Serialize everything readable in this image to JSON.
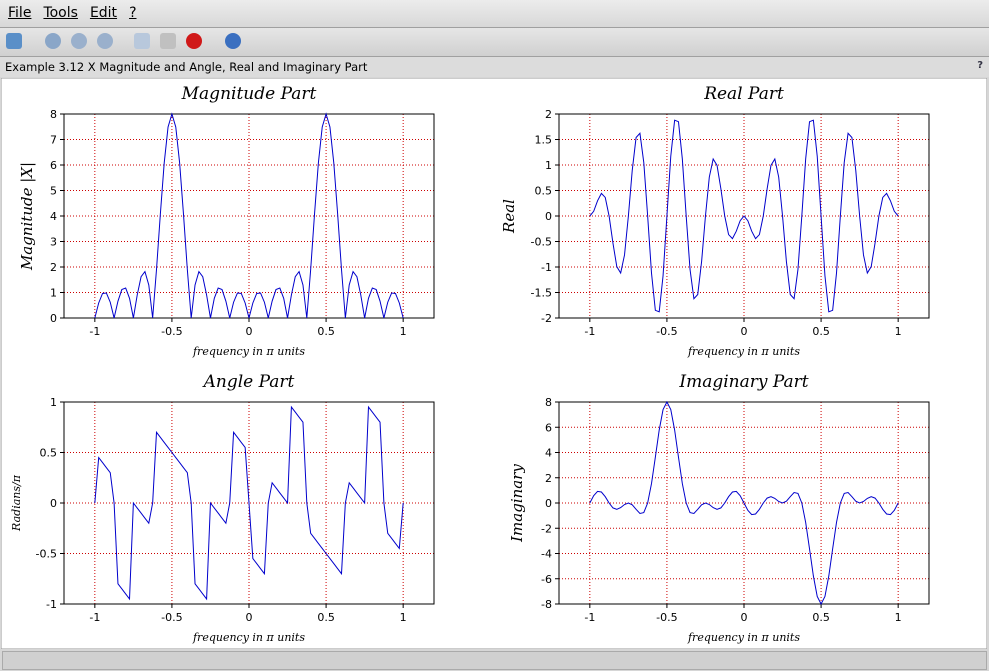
{
  "menu": [
    "File",
    "Tools",
    "Edit",
    "?"
  ],
  "window_title": "Example 3.12 X Magnitude and Angle, Real and Imaginary Part",
  "help_mark": "?",
  "chart_data": [
    {
      "type": "line",
      "title": "Magnitude Part",
      "x_label": "frequency in π units",
      "y_label": "Magnitude |X|",
      "xlim": [
        -1.2,
        1.2
      ],
      "xticks": [
        -1,
        -0.5,
        0,
        0.5,
        1
      ],
      "ylim": [
        0,
        8
      ],
      "yticks": [
        0,
        1,
        2,
        3,
        4,
        5,
        6,
        7,
        8
      ],
      "grid": true,
      "grid_color": "#cc0000",
      "x": [
        -1,
        -0.975,
        -0.95,
        -0.925,
        -0.9,
        -0.875,
        -0.85,
        -0.825,
        -0.8,
        -0.775,
        -0.75,
        -0.725,
        -0.7,
        -0.675,
        -0.65,
        -0.625,
        -0.6,
        -0.575,
        -0.55,
        -0.525,
        -0.5,
        -0.475,
        -0.45,
        -0.425,
        -0.4,
        -0.375,
        -0.35,
        -0.325,
        -0.3,
        -0.275,
        -0.25,
        -0.225,
        -0.2,
        -0.175,
        -0.15,
        -0.125,
        -0.1,
        -0.075,
        -0.05,
        -0.025,
        0,
        0.025,
        0.05,
        0.075,
        0.1,
        0.125,
        0.15,
        0.175,
        0.2,
        0.225,
        0.25,
        0.275,
        0.3,
        0.325,
        0.35,
        0.375,
        0.4,
        0.425,
        0.45,
        0.475,
        0.5,
        0.525,
        0.55,
        0.575,
        0.6,
        0.625,
        0.65,
        0.675,
        0.7,
        0.725,
        0.75,
        0.775,
        0.8,
        0.825,
        0.85,
        0.875,
        0.9,
        0.925,
        0.95,
        0.975,
        1
      ],
      "series": [
        {
          "color": "#0000cc",
          "values": [
            0,
            0.5896,
            0.9629,
            0.9781,
            0.618,
            0,
            0.6597,
            1.1155,
            1.1756,
            0.773,
            0,
            0.9051,
            1.6181,
            1.8203,
            1.2947,
            0,
            1.9021,
            4.0741,
            6.08,
            7.4917,
            8,
            7.4917,
            6.08,
            4.0741,
            1.9021,
            0,
            1.2947,
            1.8203,
            1.6181,
            0.9051,
            0,
            0.773,
            1.1756,
            1.1155,
            0.6597,
            0,
            0.618,
            0.9781,
            0.9629,
            0.5896,
            0,
            0.5896,
            0.9629,
            0.9781,
            0.618,
            0,
            0.6597,
            1.1155,
            1.1756,
            0.773,
            0,
            0.9051,
            1.6181,
            1.8203,
            1.2947,
            0,
            1.9021,
            4.0741,
            6.08,
            7.4917,
            8,
            7.4917,
            6.08,
            4.0741,
            1.9021,
            0,
            1.2947,
            1.8203,
            1.6181,
            0.9051,
            0,
            0.773,
            1.1756,
            1.1155,
            0.6597,
            0,
            0.618,
            0.9781,
            0.9629,
            0.5896,
            0
          ]
        }
      ]
    },
    {
      "type": "line",
      "title": "Real Part",
      "x_label": "frequency in π units",
      "y_label": "Real",
      "xlim": [
        -1.2,
        1.2
      ],
      "xticks": [
        -1,
        -0.5,
        0,
        0.5,
        1
      ],
      "ylim": [
        -2,
        2
      ],
      "yticks": [
        -2,
        -1.5,
        -1,
        -0.5,
        0,
        0.5,
        1,
        1.5,
        2
      ],
      "grid": true,
      "grid_color": "#cc0000",
      "x": [
        -1,
        -0.975,
        -0.95,
        -0.925,
        -0.9,
        -0.875,
        -0.85,
        -0.825,
        -0.8,
        -0.775,
        -0.75,
        -0.725,
        -0.7,
        -0.675,
        -0.65,
        -0.625,
        -0.6,
        -0.575,
        -0.55,
        -0.525,
        -0.5,
        -0.475,
        -0.45,
        -0.425,
        -0.4,
        -0.375,
        -0.35,
        -0.325,
        -0.3,
        -0.275,
        -0.25,
        -0.225,
        -0.2,
        -0.175,
        -0.15,
        -0.125,
        -0.1,
        -0.075,
        -0.05,
        -0.025,
        0,
        0.025,
        0.05,
        0.075,
        0.1,
        0.125,
        0.15,
        0.175,
        0.2,
        0.225,
        0.25,
        0.275,
        0.3,
        0.325,
        0.35,
        0.375,
        0.4,
        0.425,
        0.45,
        0.475,
        0.5,
        0.525,
        0.55,
        0.575,
        0.6,
        0.625,
        0.65,
        0.675,
        0.7,
        0.725,
        0.75,
        0.775,
        0.8,
        0.825,
        0.85,
        0.875,
        0.9,
        0.925,
        0.95,
        0.975,
        1
      ],
      "series": [
        {
          "color": "#0000cc",
          "values": [
            0,
            0.0922,
            0.2975,
            0.4441,
            0.3633,
            0,
            -0.5337,
            -0.9939,
            -1.1181,
            -0.7635,
            0,
            0.894,
            1.5389,
            1.6219,
            1.0474,
            0,
            -1.1181,
            -1.8496,
            -1.8787,
            -1.1717,
            0,
            1.1717,
            1.8787,
            1.8496,
            1.1181,
            0,
            -1.0474,
            -1.6219,
            -1.5389,
            -0.894,
            0,
            0.7635,
            1.1181,
            0.9939,
            0.5337,
            0,
            -0.3633,
            -0.4441,
            -0.2975,
            -0.0922,
            0,
            -0.0922,
            -0.2975,
            -0.4441,
            -0.3633,
            0,
            0.5337,
            0.9939,
            1.1181,
            0.7635,
            0,
            -0.894,
            -1.5389,
            -1.6219,
            -1.0474,
            0,
            1.1181,
            1.8496,
            1.8787,
            1.1717,
            0,
            -1.1717,
            -1.8787,
            -1.8496,
            -1.1181,
            0,
            1.0474,
            1.6219,
            1.5389,
            0.894,
            0,
            -0.7635,
            -1.1181,
            -0.9939,
            -0.5337,
            0,
            0.3633,
            0.4441,
            0.2975,
            0.0922,
            0
          ]
        }
      ]
    },
    {
      "type": "line",
      "title": "Angle Part",
      "x_label": "frequency in π units",
      "y_label": "Radians/π",
      "xlim": [
        -1.2,
        1.2
      ],
      "xticks": [
        -1,
        -0.5,
        0,
        0.5,
        1
      ],
      "ylim": [
        -1,
        1
      ],
      "yticks": [
        -1,
        -0.5,
        0,
        0.5,
        1
      ],
      "grid": true,
      "grid_color": "#cc0000",
      "x": [
        -1,
        -0.975,
        -0.95,
        -0.925,
        -0.9,
        -0.875,
        -0.85,
        -0.825,
        -0.8,
        -0.775,
        -0.75,
        -0.725,
        -0.7,
        -0.675,
        -0.65,
        -0.625,
        -0.6,
        -0.575,
        -0.55,
        -0.525,
        -0.5,
        -0.475,
        -0.45,
        -0.425,
        -0.4,
        -0.375,
        -0.35,
        -0.325,
        -0.3,
        -0.275,
        -0.25,
        -0.225,
        -0.2,
        -0.175,
        -0.15,
        -0.125,
        -0.1,
        -0.075,
        -0.05,
        -0.025,
        0,
        0.025,
        0.05,
        0.075,
        0.1,
        0.125,
        0.15,
        0.175,
        0.2,
        0.225,
        0.25,
        0.275,
        0.3,
        0.325,
        0.35,
        0.375,
        0.4,
        0.425,
        0.45,
        0.475,
        0.5,
        0.525,
        0.55,
        0.575,
        0.6,
        0.625,
        0.65,
        0.675,
        0.7,
        0.725,
        0.75,
        0.775,
        0.8,
        0.825,
        0.85,
        0.875,
        0.9,
        0.925,
        0.95,
        0.975,
        1
      ],
      "series": [
        {
          "color": "#0000cc",
          "values": [
            0,
            0.45,
            0.4,
            0.35,
            0.3,
            0,
            -0.8,
            -0.85,
            -0.9,
            -0.95,
            0,
            -0.05,
            -0.1,
            -0.15,
            -0.2,
            0,
            0.7,
            0.65,
            0.6,
            0.55,
            0.5,
            0.45,
            0.4,
            0.35,
            0.3,
            0,
            -0.8,
            -0.85,
            -0.9,
            -0.95,
            0,
            -0.05,
            -0.1,
            -0.15,
            -0.2,
            0,
            0.7,
            0.65,
            0.6,
            0.55,
            0,
            -0.55,
            -0.6,
            -0.65,
            -0.7,
            0,
            0.2,
            0.15,
            0.1,
            0.05,
            0,
            0.95,
            0.9,
            0.85,
            0.8,
            0,
            -0.3,
            -0.35,
            -0.4,
            -0.45,
            -0.5,
            -0.55,
            -0.6,
            -0.65,
            -0.7,
            0,
            0.2,
            0.15,
            0.1,
            0.05,
            0,
            0.95,
            0.9,
            0.85,
            0.8,
            0,
            -0.3,
            -0.35,
            -0.4,
            -0.45,
            0
          ]
        }
      ]
    },
    {
      "type": "line",
      "title": "Imaginary Part",
      "x_label": "frequency in π units",
      "y_label": "Imaginary",
      "xlim": [
        -1.2,
        1.2
      ],
      "xticks": [
        -1,
        -0.5,
        0,
        0.5,
        1
      ],
      "ylim": [
        -8,
        8
      ],
      "yticks": [
        -8,
        -6,
        -4,
        -2,
        0,
        2,
        4,
        6,
        8
      ],
      "grid": true,
      "grid_color": "#cc0000",
      "x": [
        -1,
        -0.975,
        -0.95,
        -0.925,
        -0.9,
        -0.875,
        -0.85,
        -0.825,
        -0.8,
        -0.775,
        -0.75,
        -0.725,
        -0.7,
        -0.675,
        -0.65,
        -0.625,
        -0.6,
        -0.575,
        -0.55,
        -0.525,
        -0.5,
        -0.475,
        -0.45,
        -0.425,
        -0.4,
        -0.375,
        -0.35,
        -0.325,
        -0.3,
        -0.275,
        -0.25,
        -0.225,
        -0.2,
        -0.175,
        -0.15,
        -0.125,
        -0.1,
        -0.075,
        -0.05,
        -0.025,
        0,
        0.025,
        0.05,
        0.075,
        0.1,
        0.125,
        0.15,
        0.175,
        0.2,
        0.225,
        0.25,
        0.275,
        0.3,
        0.325,
        0.35,
        0.375,
        0.4,
        0.425,
        0.45,
        0.475,
        0.5,
        0.525,
        0.55,
        0.575,
        0.6,
        0.625,
        0.65,
        0.675,
        0.7,
        0.725,
        0.75,
        0.775,
        0.8,
        0.825,
        0.85,
        0.875,
        0.9,
        0.925,
        0.95,
        0.975,
        1
      ],
      "series": [
        {
          "color": "#0000cc",
          "values": [
            0,
            0.5823,
            0.9158,
            0.8715,
            0.5,
            0,
            -0.3878,
            -0.5064,
            -0.3633,
            -0.1209,
            0,
            -0.1416,
            -0.5,
            -0.8264,
            -0.761,
            0,
            1.5388,
            3.63,
            5.7827,
            7.3996,
            8,
            7.3996,
            5.7827,
            3.63,
            1.5388,
            0,
            -0.761,
            -0.8264,
            -0.5,
            -0.1416,
            0,
            -0.1209,
            -0.3633,
            -0.5064,
            -0.3878,
            0,
            0.5,
            0.8715,
            0.9158,
            0.5823,
            0,
            -0.5823,
            -0.9158,
            -0.8715,
            -0.5,
            0,
            0.3878,
            0.5064,
            0.3633,
            0.1209,
            0,
            0.1416,
            0.5,
            0.8264,
            0.761,
            0,
            -1.5388,
            -3.63,
            -5.7827,
            -7.3996,
            -8,
            -7.3996,
            -5.7827,
            -3.63,
            -1.5388,
            0,
            0.761,
            0.8264,
            0.5,
            0.1416,
            0,
            0.1209,
            0.3633,
            0.5064,
            0.3878,
            0,
            -0.5,
            -0.8715,
            -0.9158,
            -0.5823,
            0
          ]
        }
      ]
    }
  ]
}
